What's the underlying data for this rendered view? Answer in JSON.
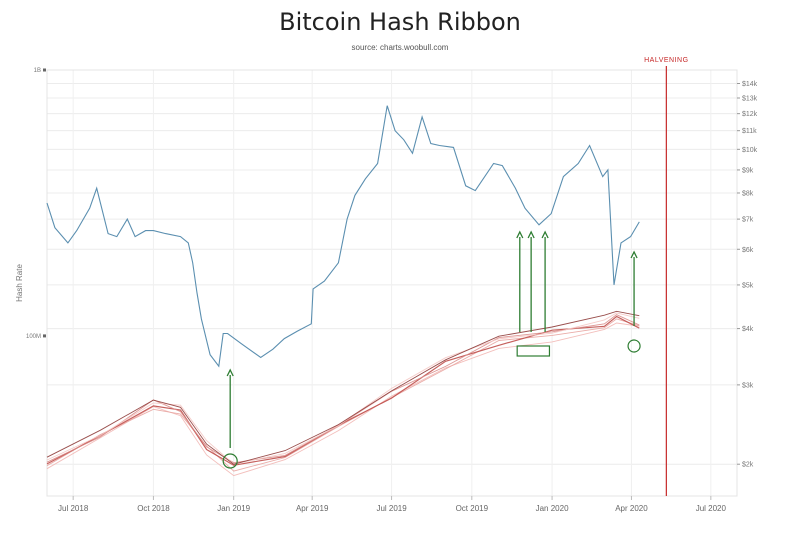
{
  "chart_data": {
    "type": "line",
    "title": "Bitcoin Hash Ribbon",
    "subtitle": "source: charts.woobull.com",
    "ylabel_left": "Hash Rate",
    "left_ticks": [
      "1B",
      "100M"
    ],
    "right_ticks": [
      "$14k",
      "$13k",
      "$12k",
      "$11k",
      "$10k",
      "$9k",
      "$8k",
      "$7k",
      "$6k",
      "$5k",
      "$4k",
      "$3k",
      "$2k"
    ],
    "x_ticks": [
      "Jul 2018",
      "Oct 2018",
      "Jan 2019",
      "Apr 2019",
      "Jul 2019",
      "Oct 2019",
      "Jan 2020",
      "Apr 2020",
      "Jul 2020"
    ],
    "halvening_label": "HALVENING",
    "scale": "log",
    "grid": true,
    "colors": {
      "price": "#5b8fb0",
      "ribbon": "#c0504d",
      "signal": "#2e7d32",
      "halvening": "#c62828"
    },
    "price_series": {
      "name": "Price",
      "x": [
        "2018-06-01",
        "2018-06-10",
        "2018-06-25",
        "2018-07-05",
        "2018-07-20",
        "2018-07-28",
        "2018-08-10",
        "2018-08-20",
        "2018-09-01",
        "2018-09-10",
        "2018-09-22",
        "2018-10-01",
        "2018-10-15",
        "2018-11-01",
        "2018-11-10",
        "2018-11-15",
        "2018-11-20",
        "2018-11-25",
        "2018-12-05",
        "2018-12-15",
        "2018-12-20",
        "2018-12-25",
        "2019-01-10",
        "2019-02-01",
        "2019-02-15",
        "2019-02-28",
        "2019-03-15",
        "2019-03-31",
        "2019-04-02",
        "2019-04-15",
        "2019-05-01",
        "2019-05-11",
        "2019-05-20",
        "2019-06-01",
        "2019-06-15",
        "2019-06-26",
        "2019-07-05",
        "2019-07-15",
        "2019-07-25",
        "2019-08-05",
        "2019-08-15",
        "2019-08-25",
        "2019-09-10",
        "2019-09-24",
        "2019-10-05",
        "2019-10-26",
        "2019-11-05",
        "2019-11-20",
        "2019-12-01",
        "2019-12-17",
        "2019-12-31",
        "2020-01-14",
        "2020-01-31",
        "2020-02-13",
        "2020-02-28",
        "2020-03-05",
        "2020-03-12",
        "2020-03-20",
        "2020-03-31",
        "2020-04-10"
      ],
      "values": [
        7600,
        6700,
        6200,
        6600,
        7400,
        8200,
        6500,
        6400,
        7000,
        6400,
        6600,
        6600,
        6500,
        6400,
        6200,
        5600,
        4800,
        4200,
        3500,
        3300,
        3900,
        3900,
        3700,
        3450,
        3600,
        3800,
        3950,
        4100,
        4900,
        5100,
        5600,
        7000,
        7900,
        8600,
        9300,
        12500,
        11000,
        10500,
        9800,
        11800,
        10300,
        10200,
        10100,
        8300,
        8100,
        9300,
        9200,
        8200,
        7400,
        6800,
        7200,
        8700,
        9300,
        10200,
        8700,
        9000,
        5000,
        6200,
        6400,
        6900
      ]
    },
    "hash_ribbon": {
      "name": "Hash Rate",
      "x": [
        "2018-06-01",
        "2018-08-01",
        "2018-10-01",
        "2018-11-01",
        "2018-12-01",
        "2019-01-01",
        "2019-03-01",
        "2019-05-01",
        "2019-07-01",
        "2019-09-01",
        "2019-11-01",
        "2020-01-01",
        "2020-03-01",
        "2020-03-15",
        "2020-04-10"
      ],
      "values": [
        33,
        42,
        55,
        52,
        38,
        32,
        36,
        45,
        60,
        78,
        95,
        102,
        112,
        115,
        110
      ]
    },
    "signals": [
      {
        "date": "2018-12-28",
        "arrow": "up"
      },
      {
        "date": "2019-11-25",
        "arrow": "up"
      },
      {
        "date": "2019-12-08",
        "arrow": "up"
      },
      {
        "date": "2019-12-24",
        "arrow": "up"
      },
      {
        "date": "2020-04-04",
        "arrow": "up"
      }
    ],
    "halvening_date": "2020-05-11"
  }
}
